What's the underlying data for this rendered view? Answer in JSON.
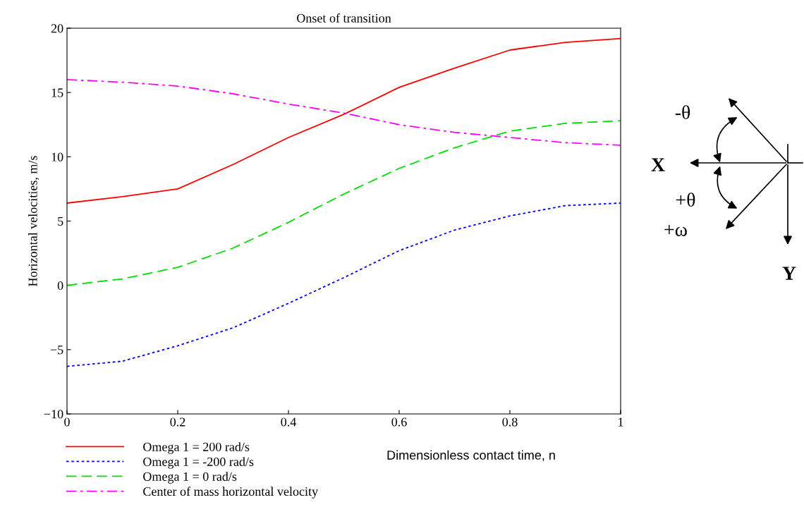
{
  "chart_data": {
    "type": "line",
    "title": "Onset of transition",
    "xlabel": "Dimensionless contact time, n",
    "ylabel": "Horizontal velocities, m/s",
    "x": [
      0,
      0.1,
      0.2,
      0.3,
      0.4,
      0.5,
      0.6,
      0.7,
      0.8,
      0.9,
      1
    ],
    "series": [
      {
        "name": "Omega 1 = 200 rad/s",
        "color": "#ff0000",
        "line_style": "solid",
        "values": [
          6.4,
          6.9,
          7.5,
          9.4,
          11.5,
          13.3,
          15.4,
          16.9,
          18.3,
          18.9,
          19.2
        ]
      },
      {
        "name": "Omega 1 = -200 rad/s",
        "color": "#0000ff",
        "line_style": "dotted",
        "values": [
          -6.3,
          -5.9,
          -4.7,
          -3.3,
          -1.4,
          0.6,
          2.7,
          4.3,
          5.4,
          6.2,
          6.4
        ]
      },
      {
        "name": "Omega 1 = 0 rad/s",
        "color": "#00dd00",
        "line_style": "dashed",
        "values": [
          0,
          0.5,
          1.4,
          2.9,
          4.9,
          7.1,
          9.1,
          10.7,
          12.0,
          12.6,
          12.8
        ]
      },
      {
        "name": "Center of mass horizontal velocity",
        "color": "#ff00ff",
        "line_style": "dashdot",
        "values": [
          16.0,
          15.8,
          15.5,
          14.9,
          14.1,
          13.4,
          12.5,
          11.9,
          11.5,
          11.1,
          10.9
        ]
      }
    ],
    "xlim": [
      0,
      1
    ],
    "xticks": [
      0,
      0.2,
      0.4,
      0.6,
      0.8,
      1
    ],
    "ylim": [
      -10,
      20
    ],
    "yticks": [
      {
        "value": -10,
        "label": "−10"
      },
      {
        "value": -5,
        "label": "−5"
      },
      0,
      5,
      10,
      15,
      20
    ],
    "grid": false,
    "legend": "bottom left",
    "marker": "none",
    "annotations": [
      "-θ",
      "X",
      "+θ",
      "+ω",
      "Y"
    ]
  }
}
